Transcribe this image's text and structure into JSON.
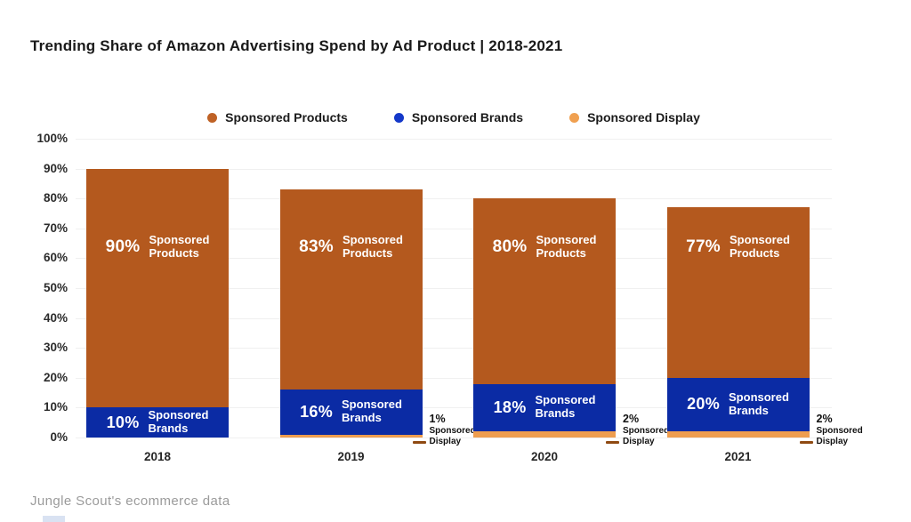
{
  "title": "Trending Share of Amazon Advertising Spend by Ad Product | 2018-2021",
  "footer_source": "Jungle Scout's ecommerce data",
  "legend": [
    {
      "label": "Sponsored Products",
      "color": "#BF6226"
    },
    {
      "label": "Sponsored Brands",
      "color": "#1438C9"
    },
    {
      "label": "Sponsored Display",
      "color": "#F0A050"
    }
  ],
  "colors": {
    "products": "#B4591E",
    "brands": "#0B2BA4",
    "display": "#EE9D4F",
    "callout_dash": "#8F4A12",
    "gridline": "#F0F0F0",
    "footer_text": "#9B9B9B"
  },
  "chart_data": {
    "type": "bar",
    "stacked": true,
    "title": "Trending Share of Amazon Advertising Spend by Ad Product | 2018-2021",
    "xlabel": "",
    "ylabel": "",
    "categories": [
      "2018",
      "2019",
      "2020",
      "2021"
    ],
    "series": [
      {
        "name": "Sponsored Products",
        "color": "#B4591E",
        "values": [
          90,
          83,
          80,
          77
        ]
      },
      {
        "name": "Sponsored Brands",
        "color": "#0B2BA4",
        "values": [
          10,
          16,
          18,
          20
        ]
      },
      {
        "name": "Sponsored Display",
        "color": "#EE9D4F",
        "values": [
          0,
          1,
          2,
          2
        ]
      }
    ],
    "bar_value_labels": [
      [
        "90% Sponsored Products",
        "10% Sponsored Brands"
      ],
      [
        "83% Sponsored Products",
        "16% Sponsored Brands",
        "1% Sponsored Display"
      ],
      [
        "80% Sponsored Products",
        "18% Sponsored Brands",
        "2% Sponsored Display"
      ],
      [
        "77% Sponsored Products",
        "20% Sponsored Brands",
        "2% Sponsored Display"
      ]
    ],
    "y_ticks": [
      "100%",
      "90%",
      "80%",
      "70%",
      "60%",
      "50%",
      "40%",
      "30%",
      "20%",
      "10%",
      "0%"
    ],
    "ylim": [
      0,
      100
    ],
    "grid": true,
    "legend_position": "top",
    "source": "Jungle Scout's ecommerce data"
  }
}
